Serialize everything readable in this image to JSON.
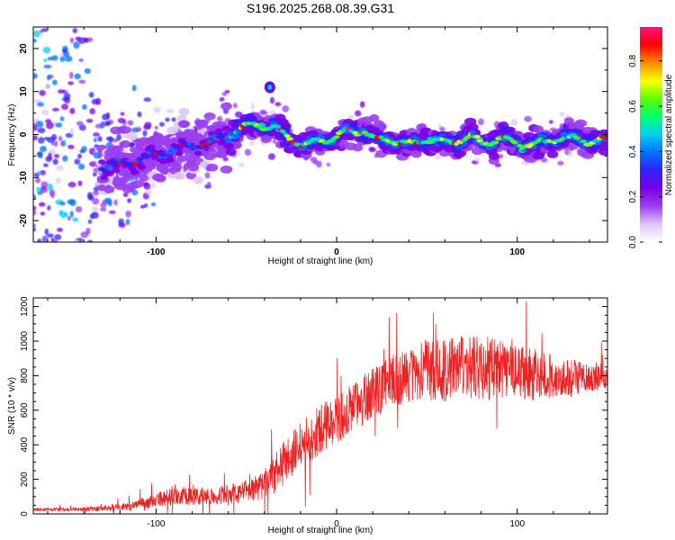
{
  "title": "S196.2025.268.08.39.G31",
  "chart_data": [
    {
      "type": "heatmap",
      "title": "S196.2025.268.08.39.G31",
      "xlabel": "Height of straight line (km)",
      "ylabel": "Frequency (Hz)",
      "xlim": [
        -168,
        150
      ],
      "ylim": [
        -25,
        25
      ],
      "xticks": [
        -100,
        0,
        100
      ],
      "yticks": [
        -20,
        -10,
        0,
        10,
        20
      ],
      "colorbar": {
        "label": "Normalized spectral amplitude",
        "range": [
          0.0,
          0.95
        ],
        "ticks": [
          0.0,
          0.2,
          0.4,
          0.6,
          0.8
        ],
        "tick_labels": [
          "0.0",
          "0.2",
          "0.4",
          "0.6",
          "0.8"
        ],
        "colors": [
          "#ffffff",
          "#ddc8f6",
          "#9a3ff0",
          "#7a00e6",
          "#3020ff",
          "#0070ff",
          "#00d0f0",
          "#00ff70",
          "#60ff00",
          "#ffff00",
          "#ff8c00",
          "#ff0000",
          "#ff1080"
        ]
      },
      "ridge": {
        "x": [
          -128,
          -115,
          -100,
          -85,
          -70,
          -55,
          -45,
          -35,
          -25,
          -18,
          -10,
          0,
          5,
          15,
          22,
          30,
          40,
          50,
          60,
          70,
          75,
          80,
          90,
          100,
          110,
          120,
          130,
          140,
          148
        ],
        "y": [
          -7.5,
          -6.5,
          -4.5,
          -3.0,
          -2.0,
          1.0,
          2.5,
          1.5,
          -1.0,
          -2.5,
          -1.5,
          -0.5,
          0.5,
          1.0,
          -1.5,
          -1.0,
          -2.5,
          -1.0,
          -2.0,
          -1.0,
          -0.5,
          -2.0,
          -1.0,
          -2.0,
          -2.5,
          -1.0,
          -1.0,
          -1.5,
          -1.5
        ]
      },
      "blob": {
        "x": -37,
        "y": 11
      }
    },
    {
      "type": "line",
      "xlabel": "Height of straight line (km)",
      "ylabel": "SNR (10 * v/v)",
      "xlim": [
        -168,
        150
      ],
      "ylim": [
        0,
        1250
      ],
      "xticks": [
        -100,
        0,
        100
      ],
      "yticks": [
        0,
        200,
        400,
        600,
        800,
        1000,
        1200
      ],
      "color": "#ee2222",
      "series": [
        {
          "name": "SNR",
          "x": [
            -168,
            -150,
            -130,
            -115,
            -105,
            -95,
            -90,
            -80,
            -60,
            -45,
            -37,
            -30,
            -25,
            -20,
            -15,
            -10,
            -5,
            0,
            10,
            20,
            30,
            40,
            50,
            60,
            70,
            80,
            90,
            100,
            110,
            120,
            130,
            140,
            150
          ],
          "mean": [
            25,
            25,
            30,
            45,
            65,
            90,
            110,
            100,
            110,
            140,
            200,
            280,
            330,
            390,
            440,
            480,
            520,
            540,
            620,
            700,
            770,
            800,
            830,
            840,
            850,
            850,
            830,
            820,
            810,
            790,
            780,
            790,
            800
          ],
          "spread": [
            10,
            10,
            15,
            25,
            35,
            50,
            60,
            50,
            55,
            70,
            100,
            130,
            150,
            140,
            140,
            140,
            140,
            140,
            150,
            150,
            150,
            160,
            180,
            190,
            190,
            190,
            180,
            170,
            160,
            130,
            110,
            90,
            70
          ]
        }
      ]
    }
  ]
}
